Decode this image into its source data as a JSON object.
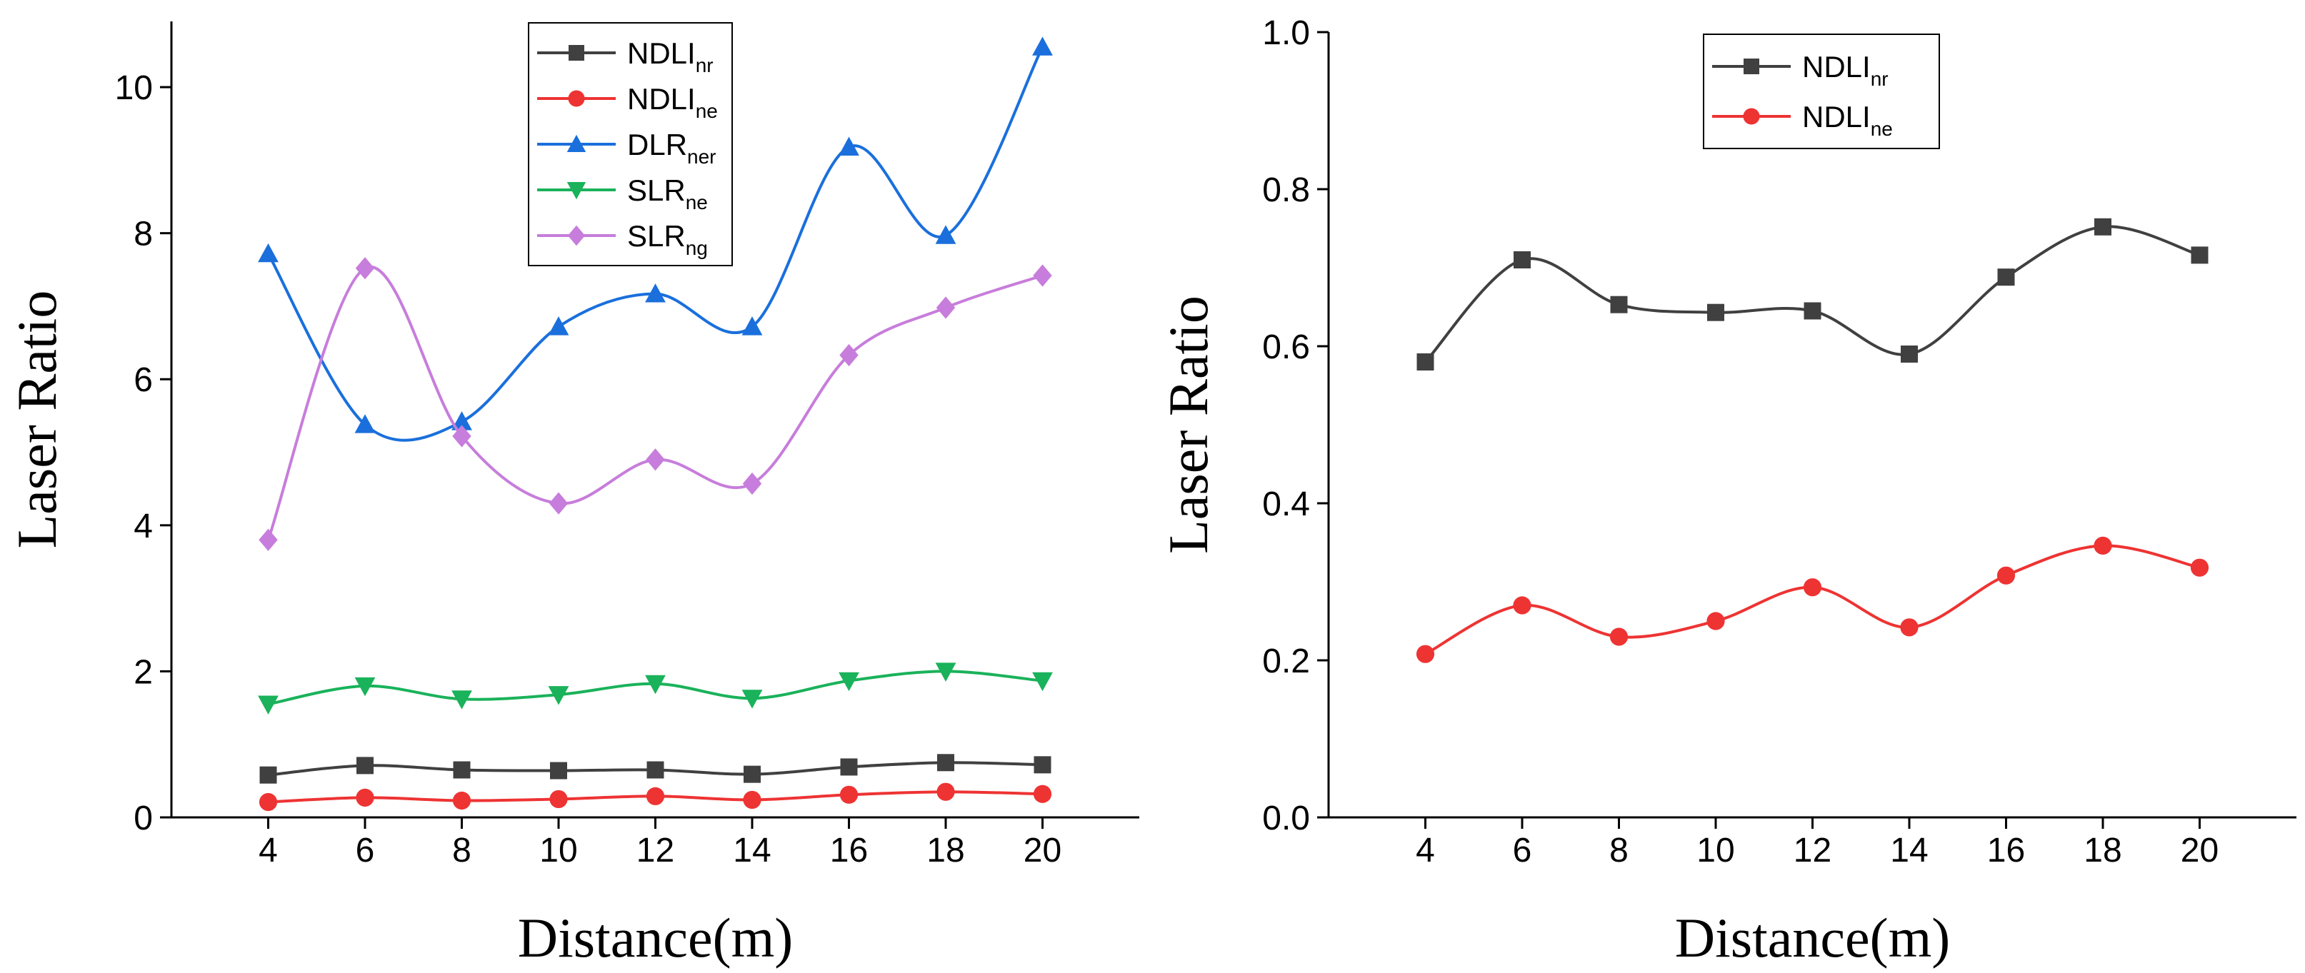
{
  "chart_data": [
    {
      "type": "line",
      "title": "",
      "xlabel": "Distance(m)",
      "ylabel": "Laser Ratio",
      "x": [
        4,
        6,
        8,
        10,
        12,
        14,
        16,
        18,
        20
      ],
      "xlim": [
        2,
        22
      ],
      "ylim": [
        0,
        10.9
      ],
      "xticks": [
        "4",
        "6",
        "8",
        "10",
        "12",
        "14",
        "16",
        "18",
        "20"
      ],
      "yticks": [
        "0",
        "2",
        "4",
        "6",
        "8",
        "10"
      ],
      "legend_position": "top-center",
      "series": [
        {
          "name": "NDLI",
          "sub": "nr",
          "color": "#404040",
          "marker": "square",
          "values": [
            0.58,
            0.71,
            0.65,
            0.64,
            0.65,
            0.59,
            0.69,
            0.75,
            0.72
          ]
        },
        {
          "name": "NDLI",
          "sub": "ne",
          "color": "#ee3333",
          "marker": "circle",
          "values": [
            0.21,
            0.27,
            0.23,
            0.25,
            0.29,
            0.24,
            0.31,
            0.35,
            0.32
          ]
        },
        {
          "name": "DLR",
          "sub": "ner",
          "color": "#1a6fdc",
          "marker": "triangle-up",
          "values": [
            7.72,
            5.38,
            5.42,
            6.72,
            7.17,
            6.72,
            9.18,
            7.97,
            10.55
          ]
        },
        {
          "name": "SLR",
          "sub": "ne",
          "color": "#1ab25a",
          "marker": "triangle-down",
          "values": [
            1.55,
            1.8,
            1.62,
            1.68,
            1.83,
            1.63,
            1.87,
            2.0,
            1.87
          ]
        },
        {
          "name": "SLR",
          "sub": "ng",
          "color": "#c77ddb",
          "marker": "diamond",
          "values": [
            3.8,
            7.52,
            5.22,
            4.3,
            4.9,
            4.57,
            6.33,
            6.98,
            7.42
          ]
        }
      ]
    },
    {
      "type": "line",
      "title": "",
      "xlabel": "Distance(m)",
      "ylabel": "Laser Ratio",
      "x": [
        4,
        6,
        8,
        10,
        12,
        14,
        16,
        18,
        20
      ],
      "xlim": [
        2,
        22
      ],
      "ylim": [
        0,
        1.0
      ],
      "xticks": [
        "4",
        "6",
        "8",
        "10",
        "12",
        "14",
        "16",
        "18",
        "20"
      ],
      "yticks": [
        "0.0",
        "0.2",
        "0.4",
        "0.6",
        "0.8",
        "1.0"
      ],
      "legend_position": "top-center",
      "series": [
        {
          "name": "NDLI",
          "sub": "nr",
          "color": "#404040",
          "marker": "square",
          "values": [
            0.58,
            0.71,
            0.653,
            0.643,
            0.645,
            0.59,
            0.688,
            0.752,
            0.716
          ]
        },
        {
          "name": "NDLI",
          "sub": "ne",
          "color": "#ee3333",
          "marker": "circle",
          "values": [
            0.208,
            0.27,
            0.23,
            0.25,
            0.293,
            0.242,
            0.308,
            0.346,
            0.318
          ]
        }
      ]
    }
  ]
}
